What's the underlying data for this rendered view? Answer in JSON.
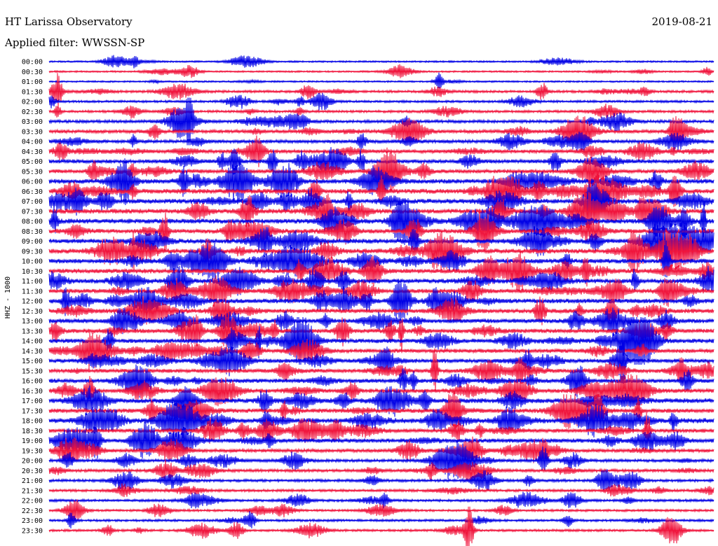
{
  "header": {
    "station_title": "HT Larissa Observatory",
    "filter_label": "Applied filter: WWSSN-SP",
    "date": "2019-08-21"
  },
  "chart_data": {
    "type": "line",
    "title": "HT Larissa Observatory",
    "subtitle": "Applied filter: WWSSN-SP",
    "ylabel": "HHZ - 1000",
    "xlabel": "",
    "date": "2019-08-21",
    "grid": false,
    "legend": "none",
    "row_interval_minutes": 30,
    "row_labels": [
      "00:00",
      "00:30",
      "01:00",
      "01:30",
      "02:00",
      "02:30",
      "03:00",
      "03:30",
      "04:00",
      "04:30",
      "05:00",
      "05:30",
      "06:00",
      "06:30",
      "07:00",
      "07:30",
      "08:00",
      "08:30",
      "09:00",
      "09:30",
      "10:00",
      "10:30",
      "11:00",
      "11:30",
      "12:00",
      "12:30",
      "13:00",
      "13:30",
      "14:00",
      "14:30",
      "15:00",
      "15:30",
      "16:00",
      "16:30",
      "17:00",
      "17:30",
      "18:00",
      "18:30",
      "19:00",
      "19:30",
      "20:00",
      "20:30",
      "21:00",
      "21:30",
      "22:00",
      "22:30",
      "23:00",
      "23:30"
    ],
    "trace_colors": [
      "#0000e6",
      "#f0143c"
    ],
    "activity_level": [
      0.15,
      0.15,
      0.15,
      0.35,
      0.3,
      0.35,
      0.45,
      0.55,
      0.55,
      0.6,
      0.65,
      0.65,
      0.8,
      0.85,
      0.85,
      0.85,
      0.85,
      0.8,
      0.85,
      0.85,
      0.8,
      0.8,
      0.8,
      0.75,
      0.8,
      0.75,
      0.75,
      0.75,
      0.75,
      0.7,
      0.7,
      0.65,
      0.7,
      0.7,
      0.85,
      0.75,
      0.9,
      0.65,
      0.7,
      0.55,
      0.45,
      0.45,
      0.4,
      0.35,
      0.35,
      0.3,
      0.3,
      0.3
    ]
  }
}
